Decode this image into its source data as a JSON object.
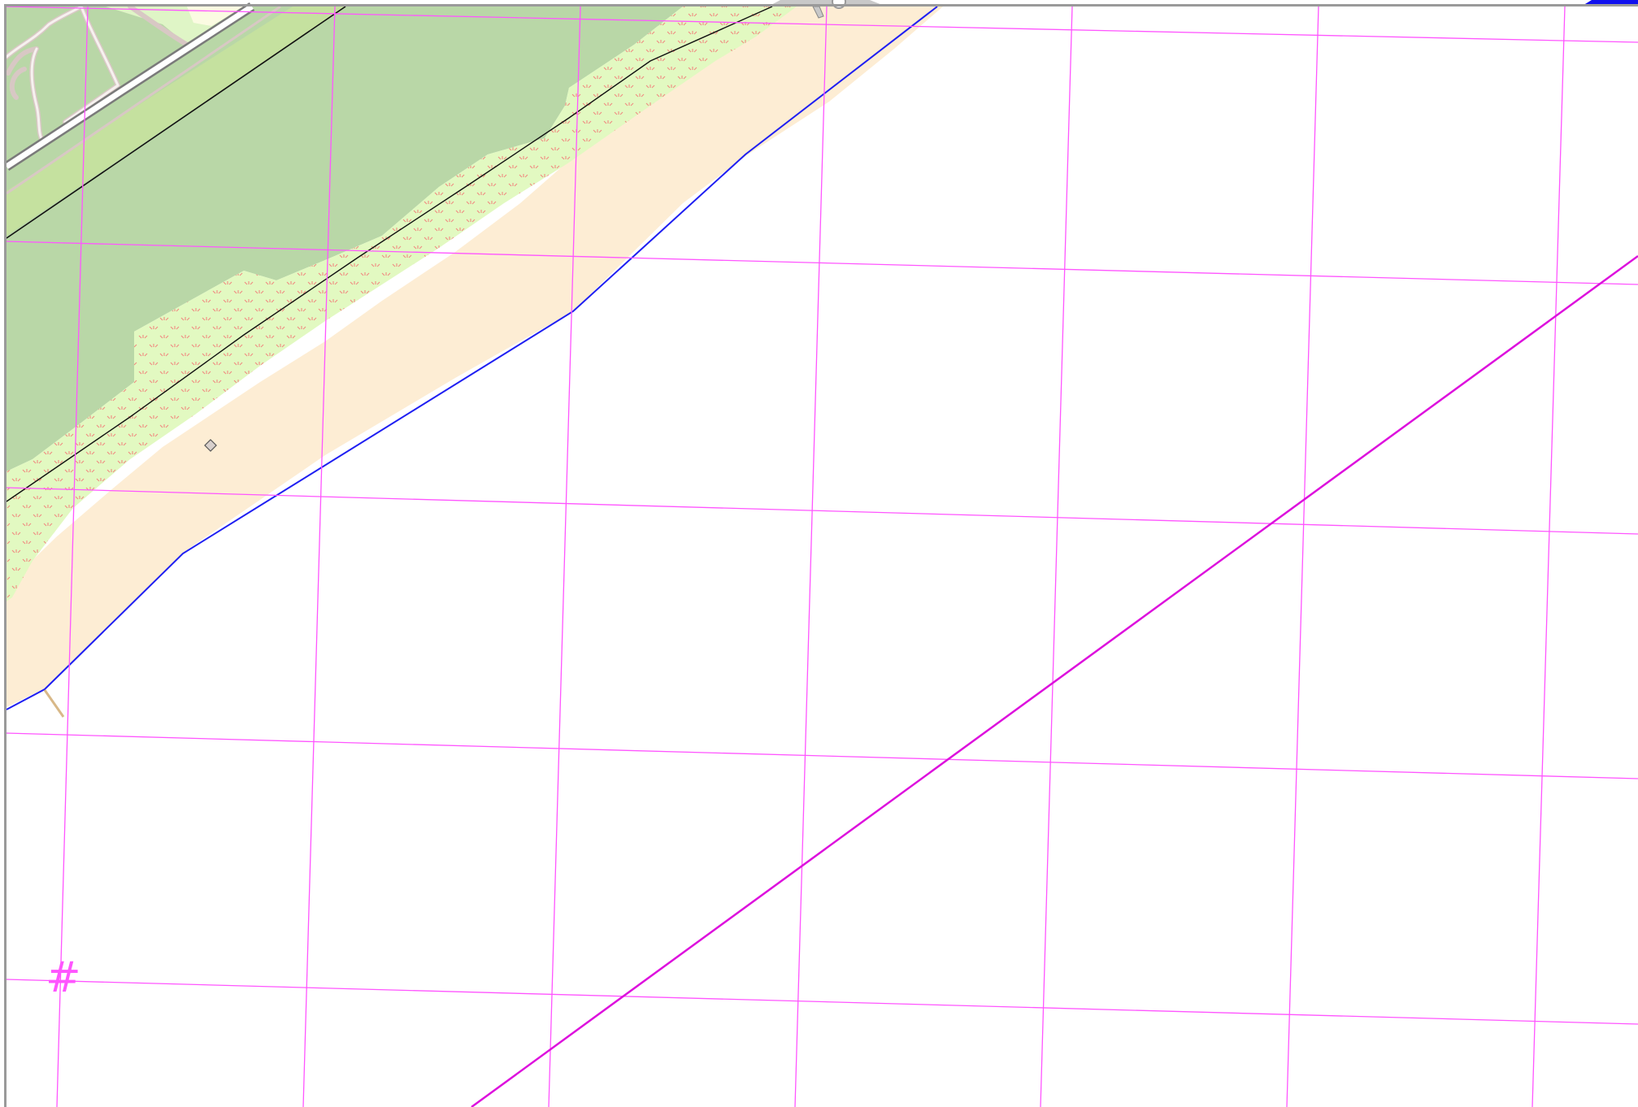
{
  "map": {
    "view": "map-tile",
    "colors": {
      "background": "#ffffff",
      "woodland": "#b9d7a7",
      "grassland": "#c5e19f",
      "scrub": "#e2f9c1",
      "scrub_symbol": "#f08a80",
      "sand": "#fdedd4",
      "park": "#dff5c6",
      "coastline": "#1f1ff2",
      "power_line": "#111111",
      "grid_line": "#ff55ff",
      "boundary_line": "#dd10dd",
      "footpath": "#d8c8c4",
      "road_casing": "#7a7a7a",
      "track": "#d8b888",
      "frame": "#9a9a9a",
      "corner_marker": "#1010ee"
    },
    "grid_label": {
      "text": "#",
      "color": "#ff55ff"
    },
    "icons": [
      "diamond-point-icon",
      "pin-icon",
      "map-frame-notch-icon"
    ]
  }
}
